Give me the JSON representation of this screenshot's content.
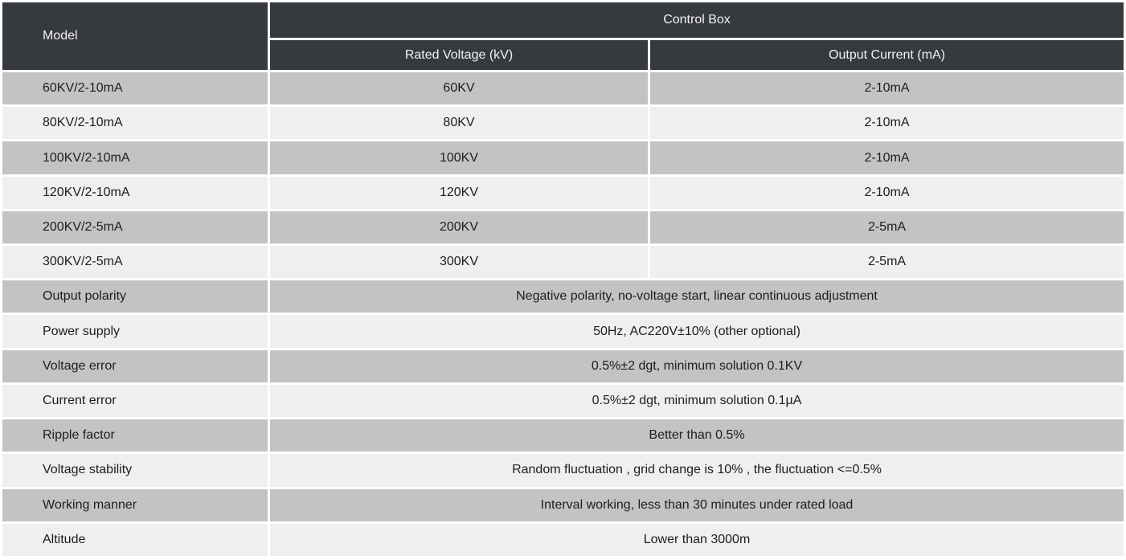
{
  "header": {
    "model": "Model",
    "control_box": "Control Box",
    "rated_voltage": "Rated Voltage (kV)",
    "output_current": "Output Current (mA)"
  },
  "model_rows": [
    {
      "model": "60KV/2-10mA",
      "rated_voltage": "60KV",
      "output_current": "2-10mA"
    },
    {
      "model": "80KV/2-10mA",
      "rated_voltage": "80KV",
      "output_current": "2-10mA"
    },
    {
      "model": "100KV/2-10mA",
      "rated_voltage": "100KV",
      "output_current": "2-10mA"
    },
    {
      "model": "120KV/2-10mA",
      "rated_voltage": "120KV",
      "output_current": "2-10mA"
    },
    {
      "model": "200KV/2-5mA",
      "rated_voltage": "200KV",
      "output_current": "2-5mA"
    },
    {
      "model": "300KV/2-5mA",
      "rated_voltage": "300KV",
      "output_current": "2-5mA"
    }
  ],
  "spec_rows": [
    {
      "label": "Output polarity",
      "value": "Negative polarity, no-voltage start, linear continuous adjustment"
    },
    {
      "label": "Power supply",
      "value": "50Hz, AC220V±10% (other optional)"
    },
    {
      "label": "Voltage error",
      "value": "0.5%±2 dgt, minimum solution 0.1KV"
    },
    {
      "label": "Current error",
      "value": "0.5%±2 dgt, minimum solution 0.1µA"
    },
    {
      "label": "Ripple factor",
      "value": "Better than 0.5%"
    },
    {
      "label": "Voltage stability",
      "value": "Random fluctuation , grid change is 10% , the fluctuation <=0.5%"
    },
    {
      "label": "Working manner",
      "value": "Interval working, less than 30 minutes under rated load"
    },
    {
      "label": "Altitude",
      "value": "Lower than 3000m"
    }
  ],
  "colors": {
    "header_bg": "#36393e",
    "header_text": "#f2f2f2",
    "row_gray": "#c3c3c3",
    "row_light": "#efefef",
    "grid": "#ffffff",
    "body_text": "#1d1d1d"
  }
}
